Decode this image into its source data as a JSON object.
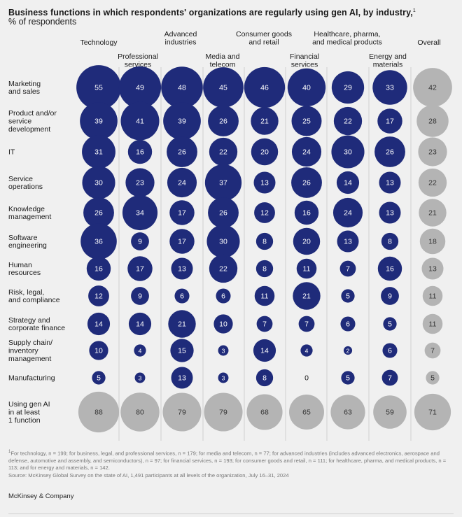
{
  "title": "Business functions in which respondents' organizations are regularly using gen AI, by industry,",
  "title_footnote_mark": "1",
  "subtitle": "% of respondents",
  "chart_data": {
    "type": "bubble-matrix",
    "title": "Business functions in which respondents' organizations are regularly using gen AI, by industry,",
    "unit": "% of respondents",
    "columns": [
      [
        "Technology"
      ],
      [
        "Professional",
        "services"
      ],
      [
        "Advanced",
        "industries"
      ],
      [
        "Media and",
        "telecom"
      ],
      [
        "Consumer goods",
        "and retail"
      ],
      [
        "Financial",
        "services"
      ],
      [
        "Healthcare, pharma,",
        "and medical products"
      ],
      [
        "Energy and",
        "materials"
      ],
      [
        "Overall"
      ]
    ],
    "rows": [
      {
        "label": [
          "Marketing",
          "and sales"
        ],
        "values": [
          55,
          49,
          48,
          45,
          46,
          40,
          29,
          33,
          42
        ]
      },
      {
        "label": [
          "Product and/or",
          "service",
          "development"
        ],
        "values": [
          39,
          41,
          39,
          26,
          21,
          25,
          22,
          17,
          28
        ]
      },
      {
        "label": [
          "IT"
        ],
        "values": [
          31,
          16,
          26,
          22,
          20,
          24,
          30,
          26,
          23
        ]
      },
      {
        "label": [
          "Service",
          "operations"
        ],
        "values": [
          30,
          23,
          24,
          37,
          13,
          26,
          14,
          13,
          22
        ]
      },
      {
        "label": [
          "Knowledge",
          "management"
        ],
        "values": [
          26,
          34,
          17,
          26,
          12,
          16,
          24,
          13,
          21
        ]
      },
      {
        "label": [
          "Software",
          "engineering"
        ],
        "values": [
          36,
          9,
          17,
          30,
          8,
          20,
          13,
          8,
          18
        ]
      },
      {
        "label": [
          "Human",
          "resources"
        ],
        "values": [
          16,
          17,
          13,
          22,
          8,
          11,
          7,
          16,
          13
        ]
      },
      {
        "label": [
          "Risk, legal,",
          "and compliance"
        ],
        "values": [
          12,
          9,
          6,
          6,
          11,
          21,
          5,
          9,
          11
        ]
      },
      {
        "label": [
          "Strategy and",
          "corporate finance"
        ],
        "values": [
          14,
          14,
          21,
          10,
          7,
          7,
          6,
          5,
          11
        ]
      },
      {
        "label": [
          "Supply chain/",
          "inventory",
          "management"
        ],
        "values": [
          10,
          4,
          15,
          3,
          14,
          4,
          2,
          6,
          7
        ]
      },
      {
        "label": [
          "Manufacturing"
        ],
        "values": [
          5,
          3,
          13,
          3,
          8,
          0,
          5,
          7,
          5
        ]
      },
      {
        "label": [
          "Using gen AI",
          "in at least",
          "1 function"
        ],
        "values": [
          88,
          80,
          79,
          79,
          68,
          65,
          63,
          59,
          71
        ],
        "summary": true
      }
    ],
    "colors": {
      "industry_bubble": "#1f2b7a",
      "overall_bubble": "#b4b4b4",
      "summary_bubble": "#b4b4b4",
      "separator": "#c8c8c8"
    }
  },
  "footnote": {
    "mark": "1",
    "text": "For technology, n = 199; for business, legal, and professional services, n = 179; for media and telecom, n = 77; for advanced industries (includes advanced electronics, aerospace and defense, automotive and assembly, and semiconductors), n = 97; for financial services, n = 193; for consumer goods and retail, n = 111; for healthcare, pharma, and medical products, n = 113; and for energy and materials, n = 142.",
    "source": "Source: McKinsey Global Survey on the state of AI, 1,491 participants at all levels of the organization, July 16–31, 2024"
  },
  "brand": "McKinsey & Company"
}
